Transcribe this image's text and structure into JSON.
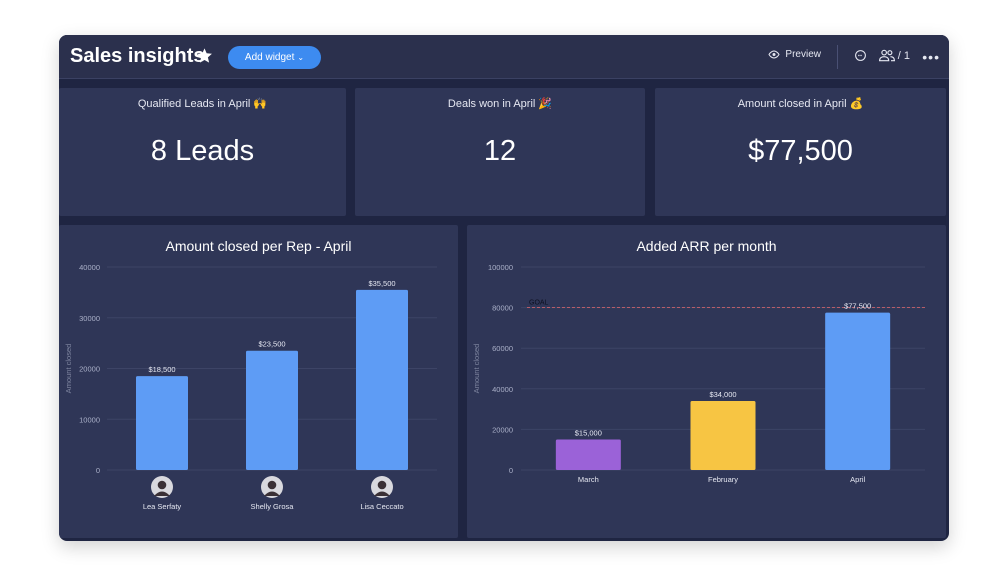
{
  "header": {
    "title": "Sales insights",
    "add_widget_label": "Add widget",
    "preview_label": "Preview",
    "members_label": "/ 1"
  },
  "kpis": [
    {
      "label": "Qualified Leads in April 🙌",
      "value": "8 Leads"
    },
    {
      "label": "Deals won in April 🎉",
      "value": "12"
    },
    {
      "label": "Amount closed in April 💰",
      "value": "$77,500"
    }
  ],
  "colors": {
    "accent": "#3d8bf0",
    "bar_blue": "#5e9cf5",
    "bar_purple": "#9b62d8",
    "bar_yellow": "#f7c543",
    "goal_line": "#e2676b"
  },
  "chart_data": [
    {
      "type": "bar",
      "title": "Amount closed per Rep - April",
      "ylabel": "Amount closed",
      "xlabel": "",
      "ylim": [
        0,
        40000
      ],
      "yticks": [
        0,
        10000,
        20000,
        30000,
        40000
      ],
      "categories": [
        "Lea Serfaty",
        "Shelly Grosa",
        "Lisa Ceccato"
      ],
      "values": [
        18500,
        23500,
        35500
      ],
      "data_labels": [
        "$18,500",
        "$23,500",
        "$35,500"
      ],
      "bar_colors": [
        "#5e9cf5",
        "#5e9cf5",
        "#5e9cf5"
      ],
      "grid": true,
      "avatars": true
    },
    {
      "type": "bar",
      "title": "Added ARR per month",
      "ylabel": "Amount closed",
      "xlabel": "",
      "ylim": [
        0,
        100000
      ],
      "yticks": [
        0,
        20000,
        40000,
        60000,
        80000,
        100000
      ],
      "categories": [
        "March",
        "February",
        "April"
      ],
      "values": [
        15000,
        34000,
        77500
      ],
      "data_labels": [
        "$15,000",
        "$34,000",
        "$77,500"
      ],
      "bar_colors": [
        "#9b62d8",
        "#f7c543",
        "#5e9cf5"
      ],
      "goal": {
        "label": "GOAL",
        "value": 80000
      },
      "grid": true,
      "avatars": false
    }
  ]
}
